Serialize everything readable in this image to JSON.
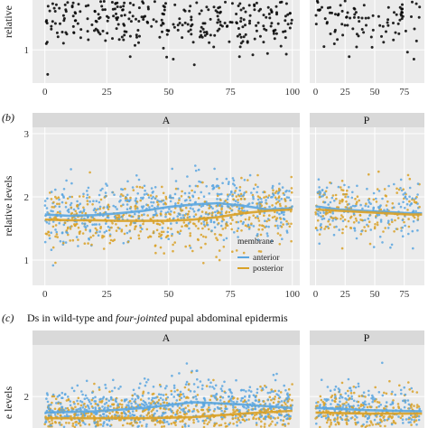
{
  "figure": {
    "panel_b_label": "(b)",
    "panel_c_label": "(c)",
    "panel_c_title_prefix": "Ds in wild-type and ",
    "panel_c_title_italic": "four-jointed",
    "panel_c_title_suffix": " pupal abdominal epidermis",
    "ylabel_top": "relative",
    "ylabel_mid": "relative levels",
    "ylabel_bot": "e levels",
    "colors": {
      "black_points": "#000000",
      "anterior": "#5aa6e0",
      "posterior": "#d9a127",
      "panel_bg": "#ebebeb",
      "strip_bg": "#d9d9d9"
    }
  },
  "chart_data": [
    {
      "id": "top",
      "type": "scatter",
      "facets": [
        "",
        ""
      ],
      "xlabel": "",
      "ylabel": "relative",
      "xlim_left": [
        -5,
        103
      ],
      "xlim_right": [
        -5,
        92
      ],
      "ylim": [
        0.5,
        1.75
      ],
      "x_ticks_left": [
        0,
        25,
        50,
        75,
        100
      ],
      "x_ticks_right": [
        0,
        25,
        50,
        75
      ],
      "y_ticks": [
        1
      ],
      "series": [
        {
          "name": "",
          "color": "#000000",
          "n_left": 380,
          "n_right": 120,
          "mean": 1.5,
          "sd": 0.25
        }
      ]
    },
    {
      "id": "b",
      "type": "scatter",
      "facets": [
        "A",
        "P"
      ],
      "xlabel": "",
      "ylabel": "relative levels",
      "xlim_left": [
        -5,
        103
      ],
      "xlim_right": [
        -5,
        92
      ],
      "ylim": [
        0.6,
        3.1
      ],
      "x_ticks_left": [
        0,
        25,
        50,
        75,
        100
      ],
      "x_ticks_right": [
        0,
        25,
        50,
        75
      ],
      "y_ticks": [
        1,
        2,
        3
      ],
      "legend": {
        "title": "membrane",
        "placement": "bottom-right of A facet",
        "entries": [
          "anterior",
          "posterior"
        ]
      },
      "series": [
        {
          "name": "anterior",
          "color": "#5aa6e0",
          "trend_left_x": [
            0,
            10,
            20,
            30,
            40,
            50,
            60,
            70,
            80,
            90,
            100
          ],
          "trend_left_y": [
            1.72,
            1.7,
            1.71,
            1.74,
            1.78,
            1.84,
            1.88,
            1.9,
            1.86,
            1.8,
            1.82
          ],
          "trend_right_x": [
            0,
            20,
            40,
            60,
            80,
            90
          ],
          "trend_right_y": [
            1.85,
            1.8,
            1.78,
            1.76,
            1.74,
            1.74
          ]
        },
        {
          "name": "posterior",
          "color": "#d9a127",
          "trend_left_x": [
            0,
            10,
            20,
            30,
            40,
            50,
            60,
            70,
            80,
            90,
            100
          ],
          "trend_left_y": [
            1.64,
            1.63,
            1.63,
            1.62,
            1.62,
            1.62,
            1.64,
            1.68,
            1.74,
            1.78,
            1.8
          ],
          "trend_right_x": [
            0,
            20,
            40,
            60,
            80,
            90
          ],
          "trend_right_y": [
            1.8,
            1.78,
            1.76,
            1.74,
            1.72,
            1.72
          ]
        }
      ]
    },
    {
      "id": "c",
      "type": "scatter",
      "facets": [
        "A",
        "P"
      ],
      "xlabel": "",
      "ylabel": "e levels",
      "xlim_left": [
        -5,
        103
      ],
      "xlim_right": [
        -5,
        92
      ],
      "ylim": [
        1.45,
        2.9
      ],
      "x_ticks_left": [],
      "x_ticks_right": [],
      "y_ticks": [
        2
      ],
      "series": [
        {
          "name": "anterior",
          "color": "#5aa6e0",
          "trend_left_x": [
            0,
            20,
            40,
            60,
            80,
            100
          ],
          "trend_left_y": [
            1.72,
            1.74,
            1.8,
            1.9,
            1.86,
            1.8
          ],
          "trend_right_x": [
            0,
            45,
            90
          ],
          "trend_right_y": [
            1.8,
            1.76,
            1.74
          ]
        },
        {
          "name": "posterior",
          "color": "#d9a127",
          "trend_left_x": [
            0,
            20,
            40,
            60,
            80,
            100
          ],
          "trend_left_y": [
            1.62,
            1.62,
            1.62,
            1.64,
            1.7,
            1.75
          ],
          "trend_right_x": [
            0,
            45,
            90
          ],
          "trend_right_y": [
            1.72,
            1.7,
            1.7
          ]
        }
      ]
    }
  ]
}
